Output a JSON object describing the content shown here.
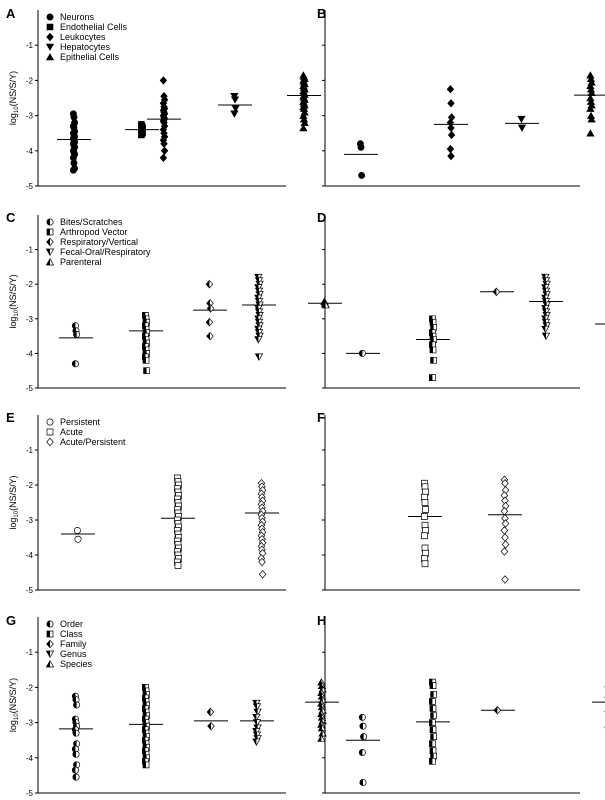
{
  "y_axis_label_main": "log",
  "y_axis_label_sub": "10",
  "y_axis_label_rest": "(NS/S/Y)",
  "chart_data": [
    {
      "panel": "A",
      "type": "scatter",
      "ylim": [
        -5,
        0
      ],
      "yticks": [
        "-1",
        "-2",
        "-3",
        "-4",
        "-5"
      ],
      "legend": [
        "Neurons",
        "Endothelial Cells",
        "Leukocytes",
        "Hepatocytes",
        "Epithelial Cells"
      ],
      "groups": [
        {
          "name": "Neurons",
          "marker": "circle",
          "fill": "solid",
          "mean": -3.68,
          "values": [
            -2.95,
            -3.05,
            -3.2,
            -3.3,
            -3.35,
            -3.45,
            -3.5,
            -3.55,
            -3.6,
            -3.65,
            -3.7,
            -3.75,
            -3.8,
            -3.85,
            -3.9,
            -4.0,
            -4.05,
            -4.1,
            -4.2,
            -4.35,
            -4.5,
            -4.55
          ]
        },
        {
          "name": "Endothelial Cells",
          "marker": "square",
          "fill": "solid",
          "mean": -3.4,
          "values": [
            -3.25,
            -3.3,
            -3.35,
            -3.4,
            -3.45,
            -3.5,
            -3.55
          ]
        },
        {
          "name": "Leukocytes",
          "marker": "diamond",
          "fill": "solid",
          "mean": -3.1,
          "values": [
            -2.0,
            -2.45,
            -2.55,
            -2.65,
            -2.75,
            -2.8,
            -2.85,
            -2.9,
            -2.95,
            -3.0,
            -3.05,
            -3.1,
            -3.15,
            -3.2,
            -3.3,
            -3.4,
            -3.5,
            -3.6,
            -3.7,
            -3.8,
            -4.0,
            -4.2
          ]
        },
        {
          "name": "Hepatocytes",
          "marker": "triangle-down",
          "fill": "solid",
          "mean": -2.7,
          "values": [
            -2.45,
            -2.55,
            -2.8,
            -2.95
          ]
        },
        {
          "name": "Epithelial Cells",
          "marker": "triangle-up",
          "fill": "solid",
          "mean": -2.43,
          "values": [
            -1.85,
            -1.9,
            -1.95,
            -2.0,
            -2.05,
            -2.1,
            -2.15,
            -2.2,
            -2.25,
            -2.3,
            -2.35,
            -2.4,
            -2.45,
            -2.5,
            -2.55,
            -2.6,
            -2.65,
            -2.7,
            -2.75,
            -2.8,
            -2.9,
            -3.0,
            -3.1,
            -3.2,
            -3.35
          ]
        }
      ]
    },
    {
      "panel": "B",
      "type": "scatter",
      "ylim": [
        -5,
        0
      ],
      "yticks": [],
      "legend": [],
      "groups": [
        {
          "name": "Neurons",
          "marker": "circle",
          "fill": "solid",
          "mean": -4.1,
          "values": [
            -3.8,
            -3.9,
            -4.7
          ]
        },
        {
          "name": "Leukocytes",
          "marker": "diamond",
          "fill": "solid",
          "mean": -3.25,
          "values": [
            -2.25,
            -2.65,
            -3.05,
            -3.2,
            -3.35,
            -3.55,
            -3.95,
            -4.15
          ]
        },
        {
          "name": "Hepatocytes",
          "marker": "triangle-down",
          "fill": "solid",
          "mean": -3.22,
          "values": [
            -3.1,
            -3.35
          ]
        },
        {
          "name": "Epithelial Cells",
          "marker": "triangle-up",
          "fill": "solid",
          "mean": -2.42,
          "values": [
            -1.85,
            -1.95,
            -2.05,
            -2.15,
            -2.25,
            -2.35,
            -2.5,
            -2.6,
            -2.7,
            -2.8,
            -3.0,
            -3.1,
            -3.5
          ]
        }
      ]
    },
    {
      "panel": "C",
      "type": "scatter",
      "ylim": [
        -5,
        0
      ],
      "yticks": [
        "-1",
        "-2",
        "-3",
        "-4",
        "-5"
      ],
      "legend": [
        "Bites/Scratches",
        "Arthropod Vector",
        "Respiratory/Vertical",
        "Fecal-Oral/Respiratory",
        "Parenteral"
      ],
      "groups": [
        {
          "name": "Bites/Scratches",
          "marker": "circle",
          "fill": "half",
          "mean": -3.55,
          "values": [
            -3.2,
            -3.35,
            -3.45,
            -4.3
          ]
        },
        {
          "name": "Arthropod Vector",
          "marker": "square",
          "fill": "half",
          "mean": -3.35,
          "values": [
            -2.9,
            -3.0,
            -3.1,
            -3.2,
            -3.3,
            -3.4,
            -3.5,
            -3.6,
            -3.7,
            -3.8,
            -3.9,
            -4.0,
            -4.1,
            -4.2,
            -4.5
          ]
        },
        {
          "name": "Respiratory/Vertical",
          "marker": "diamond",
          "fill": "half",
          "mean": -2.75,
          "values": [
            -2.0,
            -2.55,
            -2.7,
            -3.1,
            -3.5
          ]
        },
        {
          "name": "Fecal-Oral/Respiratory",
          "marker": "triangle-down",
          "fill": "half",
          "mean": -2.6,
          "values": [
            -1.8,
            -1.9,
            -2.0,
            -2.1,
            -2.2,
            -2.3,
            -2.4,
            -2.5,
            -2.6,
            -2.7,
            -2.8,
            -2.9,
            -3.0,
            -3.1,
            -3.2,
            -3.3,
            -3.4,
            -3.5,
            -3.6,
            -4.1
          ]
        },
        {
          "name": "Parenteral",
          "marker": "triangle-up",
          "fill": "half",
          "mean": -2.55,
          "values": [
            -2.5,
            -2.55,
            -2.6
          ]
        }
      ]
    },
    {
      "panel": "D",
      "type": "scatter",
      "ylim": [
        -5,
        0
      ],
      "yticks": [],
      "legend": [],
      "groups": [
        {
          "name": "Bites/Scratches",
          "marker": "circle",
          "fill": "half",
          "mean": -4.0,
          "values": [
            -4.0
          ]
        },
        {
          "name": "Arthropod Vector",
          "marker": "square",
          "fill": "half",
          "mean": -3.6,
          "values": [
            -3.0,
            -3.1,
            -3.25,
            -3.4,
            -3.5,
            -3.6,
            -3.75,
            -3.9,
            -4.2,
            -4.7
          ]
        },
        {
          "name": "Respiratory/Vertical",
          "marker": "diamond",
          "fill": "half",
          "mean": -2.22,
          "values": [
            -2.22
          ]
        },
        {
          "name": "Fecal-Oral/Respiratory",
          "marker": "triangle-down",
          "fill": "half",
          "mean": -2.5,
          "values": [
            -1.8,
            -1.9,
            -2.0,
            -2.1,
            -2.2,
            -2.3,
            -2.4,
            -2.5,
            -2.6,
            -2.7,
            -2.8,
            -2.9,
            -3.0,
            -3.1,
            -3.2,
            -3.3,
            -3.5
          ]
        },
        {
          "name": "Parenteral",
          "marker": "triangle-up",
          "fill": "half",
          "mean": -3.15,
          "values": [
            -3.1,
            -3.2
          ]
        }
      ]
    },
    {
      "panel": "E",
      "type": "scatter",
      "ylim": [
        -5,
        0
      ],
      "yticks": [
        "-1",
        "-2",
        "-3",
        "-4",
        "-5"
      ],
      "legend": [
        "Persistent",
        "Acute",
        "Acute/Persistent"
      ],
      "groups": [
        {
          "name": "Persistent",
          "marker": "circle",
          "fill": "open",
          "mean": -3.4,
          "values": [
            -3.3,
            -3.55
          ]
        },
        {
          "name": "Acute",
          "marker": "square",
          "fill": "open",
          "mean": -2.95,
          "values": [
            -1.8,
            -1.9,
            -2.0,
            -2.1,
            -2.2,
            -2.3,
            -2.4,
            -2.5,
            -2.6,
            -2.7,
            -2.8,
            -2.9,
            -3.0,
            -3.1,
            -3.2,
            -3.3,
            -3.4,
            -3.5,
            -3.6,
            -3.7,
            -3.8,
            -3.9,
            -4.0,
            -4.1,
            -4.2,
            -4.3
          ]
        },
        {
          "name": "Acute/Persistent",
          "marker": "diamond",
          "fill": "open",
          "mean": -2.8,
          "values": [
            -1.95,
            -2.05,
            -2.15,
            -2.25,
            -2.35,
            -2.45,
            -2.55,
            -2.65,
            -2.75,
            -2.85,
            -2.95,
            -3.05,
            -3.15,
            -3.25,
            -3.35,
            -3.45,
            -3.55,
            -3.65,
            -3.75,
            -3.85,
            -3.95,
            -4.1,
            -4.2,
            -4.55
          ]
        }
      ]
    },
    {
      "panel": "F",
      "type": "scatter",
      "ylim": [
        -5,
        0
      ],
      "yticks": [],
      "legend": [],
      "groups": [
        {
          "name": "Acute",
          "marker": "square",
          "fill": "open",
          "mean": -2.9,
          "values": [
            -1.95,
            -2.05,
            -2.2,
            -2.35,
            -2.5,
            -2.7,
            -2.9,
            -3.15,
            -3.3,
            -3.45,
            -3.8,
            -3.95,
            -4.1,
            -4.25
          ]
        },
        {
          "name": "Acute/Persistent",
          "marker": "diamond",
          "fill": "open",
          "mean": -2.85,
          "values": [
            -1.85,
            -1.95,
            -2.15,
            -2.3,
            -2.45,
            -2.6,
            -2.75,
            -2.95,
            -3.1,
            -3.3,
            -3.5,
            -3.7,
            -3.9,
            -4.7
          ]
        }
      ]
    },
    {
      "panel": "G",
      "type": "scatter",
      "ylim": [
        -5,
        0
      ],
      "yticks": [
        "-1",
        "-2",
        "-3",
        "-4",
        "-5"
      ],
      "legend": [
        "Order",
        "Class",
        "Family",
        "Genus",
        "Species"
      ],
      "groups": [
        {
          "name": "Order",
          "marker": "circle",
          "fill": "half",
          "mean": -3.18,
          "values": [
            -2.25,
            -2.35,
            -2.5,
            -2.9,
            -3.0,
            -3.1,
            -3.2,
            -3.3,
            -3.6,
            -3.75,
            -3.9,
            -4.2,
            -4.35,
            -4.55
          ]
        },
        {
          "name": "Class",
          "marker": "square",
          "fill": "half",
          "mean": -3.05,
          "values": [
            -2.0,
            -2.1,
            -2.2,
            -2.3,
            -2.4,
            -2.5,
            -2.6,
            -2.7,
            -2.8,
            -2.9,
            -3.0,
            -3.1,
            -3.2,
            -3.3,
            -3.4,
            -3.5,
            -3.6,
            -3.7,
            -3.8,
            -3.9,
            -4.0,
            -4.1,
            -4.2
          ]
        },
        {
          "name": "Family",
          "marker": "diamond",
          "fill": "half",
          "mean": -2.95,
          "values": [
            -2.7,
            -3.1
          ]
        },
        {
          "name": "Genus",
          "marker": "triangle-down",
          "fill": "half",
          "mean": -2.95,
          "values": [
            -2.45,
            -2.55,
            -2.7,
            -2.85,
            -3.0,
            -3.15,
            -3.25,
            -3.35,
            -3.45,
            -3.55
          ]
        },
        {
          "name": "Species",
          "marker": "triangle-up",
          "fill": "half",
          "mean": -2.42,
          "values": [
            -1.85,
            -1.95,
            -2.05,
            -2.15,
            -2.25,
            -2.35,
            -2.45,
            -2.55,
            -2.65,
            -2.75,
            -2.85,
            -2.95,
            -3.05,
            -3.15,
            -3.3,
            -3.45
          ]
        }
      ]
    },
    {
      "panel": "H",
      "type": "scatter",
      "ylim": [
        -5,
        0
      ],
      "yticks": [],
      "legend": [],
      "groups": [
        {
          "name": "Order",
          "marker": "circle",
          "fill": "half",
          "mean": -3.5,
          "values": [
            -2.85,
            -3.1,
            -3.4,
            -3.85,
            -4.7
          ]
        },
        {
          "name": "Class",
          "marker": "square",
          "fill": "half",
          "mean": -2.98,
          "values": [
            -1.85,
            -1.95,
            -2.2,
            -2.4,
            -2.6,
            -2.8,
            -3.0,
            -3.2,
            -3.4,
            -3.6,
            -3.8,
            -3.95,
            -4.1
          ]
        },
        {
          "name": "Family",
          "marker": "diamond",
          "fill": "half",
          "mean": -2.65,
          "values": [
            -2.65
          ]
        },
        {
          "name": "Species",
          "marker": "triangle-up",
          "fill": "half",
          "mean": -2.42,
          "values": [
            -1.9,
            -2.0,
            -2.1,
            -2.2,
            -2.3,
            -2.45,
            -2.6,
            -2.75,
            -2.9,
            -3.05,
            -3.2,
            -3.35
          ]
        }
      ]
    }
  ]
}
